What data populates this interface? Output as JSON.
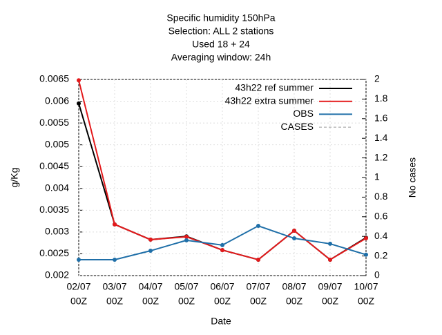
{
  "chart_data": {
    "type": "line",
    "title": [
      "Specific humidity 150hPa",
      "Selection: ALL       2 stations",
      "Used  18  + 24",
      "Averaging window: 24h"
    ],
    "xlabel": "Date",
    "ylabel": "g/Kg",
    "y2label": "No cases",
    "categories": [
      [
        "02/07",
        "00Z"
      ],
      [
        "03/07",
        "00Z"
      ],
      [
        "04/07",
        "00Z"
      ],
      [
        "05/07",
        "00Z"
      ],
      [
        "06/07",
        "00Z"
      ],
      [
        "07/07",
        "00Z"
      ],
      [
        "08/07",
        "00Z"
      ],
      [
        "09/07",
        "00Z"
      ],
      [
        "10/07",
        "00Z"
      ]
    ],
    "series": [
      {
        "name": "43h22 ref summer",
        "color": "#000000",
        "values": [
          0.00595,
          0.003175,
          0.002825,
          0.0029,
          0.002585,
          0.002365,
          0.00303,
          0.002365,
          0.00287
        ]
      },
      {
        "name": "43h22 extra summer",
        "color": "#e41a1c",
        "values": [
          0.00648,
          0.003175,
          0.002825,
          0.00289,
          0.002585,
          0.002365,
          0.00303,
          0.002365,
          0.002855
        ]
      },
      {
        "name": "OBS",
        "color": "#1f6fa8",
        "values": [
          0.002365,
          0.002365,
          0.00257,
          0.00281,
          0.0027,
          0.00314,
          0.002855,
          0.00273,
          0.00248
        ]
      },
      {
        "name": "CASES",
        "color": "#999999",
        "dashed": true,
        "axis": "y2",
        "values": [
          null,
          null,
          null,
          null,
          null,
          null,
          null,
          null,
          null
        ]
      }
    ],
    "ylim": [
      0.002,
      0.0065
    ],
    "yticks": [
      0.002,
      0.0025,
      0.003,
      0.0035,
      0.004,
      0.0045,
      0.005,
      0.0055,
      0.006,
      0.0065
    ],
    "y2lim": [
      0,
      2
    ],
    "y2ticks": [
      0,
      0.2,
      0.4,
      0.6,
      0.8,
      1,
      1.2,
      1.4,
      1.6,
      1.8,
      2
    ],
    "grid": true,
    "legend": "top-right"
  }
}
